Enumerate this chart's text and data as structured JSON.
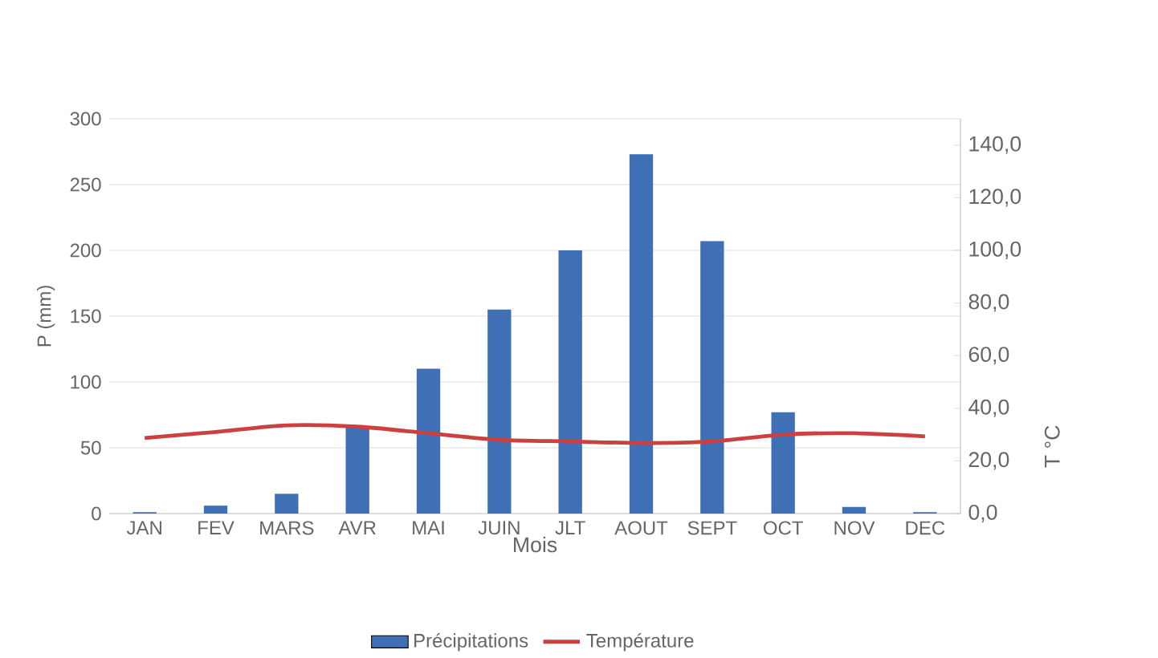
{
  "chart_data": {
    "type": "bar",
    "xlabel": "Mois",
    "ylabel": "P (mm)",
    "y2label": "T °C",
    "categories": [
      "JAN",
      "FEV",
      "MARS",
      "AVR",
      "MAI",
      "JUIN",
      "JLT",
      "AOUT",
      "SEPT",
      "OCT",
      "NOV",
      "DEC"
    ],
    "series": [
      {
        "name": "Précipitations",
        "color": "#3f6fb5",
        "values": [
          1,
          6,
          15,
          66,
          110,
          155,
          200,
          273,
          207,
          77,
          5,
          1
        ]
      },
      {
        "name": "Température",
        "type": "line",
        "axis": "y2",
        "color": "#cc4040",
        "values": [
          28.7,
          31,
          33.5,
          33,
          30.5,
          28,
          27.4,
          26.8,
          27.4,
          30,
          30.5,
          29.3
        ]
      }
    ],
    "ylim": [
      0,
      300
    ],
    "yticks": [
      0,
      50,
      100,
      150,
      200,
      250,
      300
    ],
    "y2lim": [
      0,
      150
    ],
    "y2ticks": [
      {
        "value": 0,
        "label": "0,0"
      },
      {
        "value": 20,
        "label": "20,0"
      },
      {
        "value": 40,
        "label": "40,0"
      },
      {
        "value": 60,
        "label": "60,0"
      },
      {
        "value": 80,
        "label": "80,0"
      },
      {
        "value": 100,
        "label": "100,0"
      },
      {
        "value": 120,
        "label": "120,0"
      },
      {
        "value": 140,
        "label": "140,0"
      }
    ],
    "grid": "y",
    "legend": "bottom"
  }
}
